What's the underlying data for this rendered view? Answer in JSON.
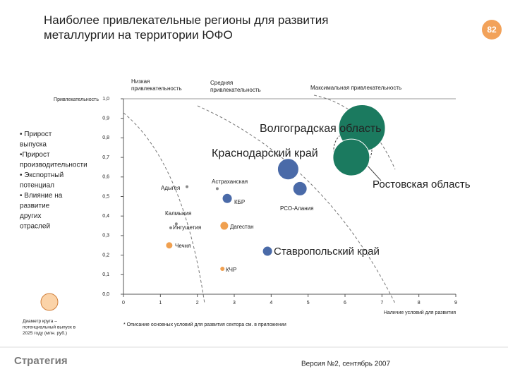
{
  "header": {
    "title": "Наиболее привлекательные регионы для развития металлургии на территории ЮФО",
    "page_number": "82"
  },
  "criteria": [
    "• Прирост выпуска",
    "•Прирост производительности",
    "• Экспортный потенциал",
    "• Влияние на развитие других отраслей"
  ],
  "legend_note": "Диаметр круга – потенциальный выпуск в 2025 году (млн. руб.)",
  "footnote": "* Описание основных условий для развития сектора см. в приложении",
  "version": "Версия №2, сентябрь 2007",
  "logo": "Стратегия",
  "chart_data": {
    "type": "bubble",
    "ylabel": "Привлекательность",
    "xlabel": "Наличие условий для развития",
    "zones": [
      "Низкая привлекательность",
      "Средняя привлекательность",
      "Максимальная привлекательность"
    ],
    "categories": [
      "Волгоградская область",
      "Ростовская область",
      "Краснодарский край",
      "Астраханская",
      "РСО-Алания",
      "Адыгея",
      "КБР",
      "Калмыкия",
      "Ингушетия",
      "Дагестан",
      "Чечня",
      "Ставропольский край",
      "КЧР"
    ],
    "x": [
      6.46,
      6.17,
      4.46,
      2.54,
      4.78,
      1.72,
      2.81,
      1.43,
      1.28,
      2.73,
      1.24,
      3.9,
      2.68
    ],
    "values": [
      0.85,
      0.7,
      0.64,
      0.54,
      0.54,
      0.55,
      0.49,
      0.36,
      0.34,
      0.35,
      0.25,
      0.22,
      0.13
    ],
    "sizes": [
      66,
      52,
      30,
      4,
      20,
      4,
      14,
      4,
      4,
      12,
      10,
      14,
      6
    ],
    "colors": [
      "#1b7a5f",
      "#1b7a5f",
      "#4a6aa8",
      "#888888",
      "#4a6aa8",
      "#888888",
      "#4a6aa8",
      "#888888",
      "#888888",
      "#f0a050",
      "#f0a050",
      "#4a6aa8",
      "#f0a050"
    ],
    "xlim": [
      0,
      9
    ],
    "ylim": [
      0,
      1
    ],
    "xticks": [
      0,
      1,
      2,
      3,
      4,
      5,
      6,
      7,
      8,
      9
    ],
    "yticks": [
      {
        "value": 0,
        "label": "0,0"
      },
      {
        "value": 0.1,
        "label": "0,1"
      },
      {
        "value": 0.2,
        "label": "0,2"
      },
      {
        "value": 0.3,
        "label": "0,3"
      },
      {
        "value": 0.4,
        "label": "0,4"
      },
      {
        "value": 0.5,
        "label": "0,5"
      },
      {
        "value": 0.6,
        "label": "0,6"
      },
      {
        "value": 0.7,
        "label": "0,7"
      },
      {
        "value": 0.8,
        "label": "0,8"
      },
      {
        "value": 0.9,
        "label": "0,9"
      },
      {
        "value": 1,
        "label": "1,0"
      }
    ]
  }
}
